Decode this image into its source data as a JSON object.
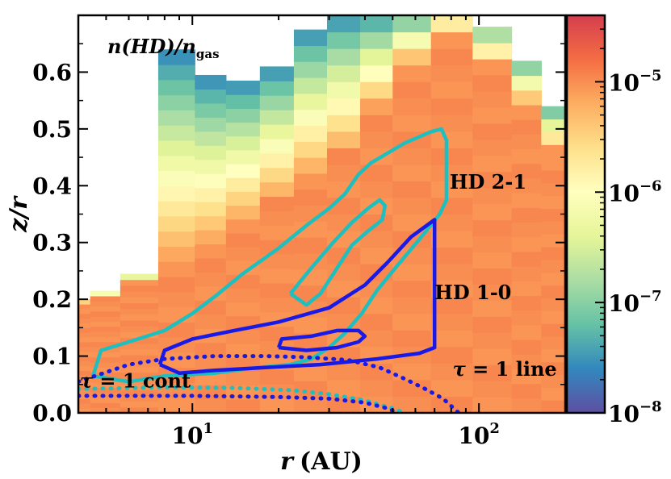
{
  "chart_data": {
    "type": "heatmap",
    "annotation_title_html": "n(HD)/n",
    "annotation_title_sub": "gas",
    "xlabel_var": "r",
    "xlabel_unit": "(AU)",
    "ylabel": "z/r",
    "xscale": "log",
    "xlim": [
      4,
      200
    ],
    "ylim": [
      0,
      0.7
    ],
    "x_tick_labels": [
      {
        "value": 10,
        "base": "10",
        "exp": "1"
      },
      {
        "value": 100,
        "base": "10",
        "exp": "2"
      }
    ],
    "y_ticks": [
      {
        "value": 0.0,
        "label": "0.0"
      },
      {
        "value": 0.1,
        "label": "0.1"
      },
      {
        "value": 0.2,
        "label": "0.2"
      },
      {
        "value": 0.3,
        "label": "0.3"
      },
      {
        "value": 0.4,
        "label": "0.4"
      },
      {
        "value": 0.5,
        "label": "0.5"
      },
      {
        "value": 0.6,
        "label": "0.6"
      }
    ],
    "colorbar": {
      "scale": "log",
      "range": [
        1e-08,
        4e-05
      ],
      "colormap": [
        "#5e4fa2",
        "#3288bd",
        "#66c2a5",
        "#abdda4",
        "#e6f598",
        "#ffffbf",
        "#fee08b",
        "#fdae61",
        "#f46d43",
        "#d53e4f"
      ],
      "ticks": [
        {
          "value": 1e-08,
          "base": "10",
          "exp": "−8"
        },
        {
          "value": 1e-07,
          "base": "10",
          "exp": "−7"
        },
        {
          "value": 1e-06,
          "base": "10",
          "exp": "−6"
        },
        {
          "value": 1e-05,
          "base": "10",
          "exp": "−5"
        }
      ]
    },
    "heatmap_columns": [
      {
        "r0": 4.0,
        "r1": 4.4,
        "ztop": 0.2,
        "depletion_top": 0.19
      },
      {
        "r0": 4.4,
        "r1": 5.6,
        "ztop": 0.215,
        "depletion_top": 0.2
      },
      {
        "r0": 5.6,
        "r1": 7.6,
        "ztop": 0.245,
        "depletion_top": 0.225
      },
      {
        "r0": 7.6,
        "r1": 10.2,
        "ztop": 0.64,
        "depletion_top": 0.25
      },
      {
        "r0": 10.2,
        "r1": 13.1,
        "ztop": 0.595,
        "depletion_top": 0.28
      },
      {
        "r0": 13.1,
        "r1": 17.2,
        "ztop": 0.585,
        "depletion_top": 0.32
      },
      {
        "r0": 17.2,
        "r1": 22.6,
        "ztop": 0.61,
        "depletion_top": 0.36
      },
      {
        "r0": 22.6,
        "r1": 29.5,
        "ztop": 0.675,
        "depletion_top": 0.4
      },
      {
        "r0": 29.5,
        "r1": 38.5,
        "ztop": 0.7,
        "depletion_top": 0.44
      },
      {
        "r0": 38.5,
        "r1": 50.0,
        "ztop": 0.7,
        "depletion_top": 0.52
      },
      {
        "r0": 50.0,
        "r1": 68.0,
        "ztop": 0.7,
        "depletion_top": 0.6
      },
      {
        "r0": 68.0,
        "r1": 95.0,
        "ztop": 0.7,
        "depletion_top": 0.66
      },
      {
        "r0": 95.0,
        "r1": 130.0,
        "ztop": 0.68,
        "depletion_top": 0.6
      },
      {
        "r0": 130.0,
        "r1": 165.0,
        "ztop": 0.62,
        "depletion_top": 0.53
      },
      {
        "r0": 165.0,
        "r1": 200.0,
        "ztop": 0.54,
        "depletion_top": 0.45
      }
    ],
    "series": [
      {
        "name": "HD 2-1",
        "color": "#1fbfbf",
        "style": "solid",
        "points": [
          [
            4.5,
            0.065
          ],
          [
            4.8,
            0.11
          ],
          [
            6,
            0.125
          ],
          [
            8,
            0.145
          ],
          [
            10,
            0.175
          ],
          [
            12,
            0.205
          ],
          [
            15,
            0.245
          ],
          [
            20,
            0.29
          ],
          [
            25,
            0.33
          ],
          [
            30,
            0.36
          ],
          [
            34,
            0.385
          ],
          [
            38,
            0.42
          ],
          [
            42,
            0.44
          ],
          [
            55,
            0.475
          ],
          [
            68,
            0.495
          ],
          [
            74,
            0.5
          ],
          [
            77,
            0.48
          ],
          [
            77,
            0.375
          ],
          [
            73,
            0.35
          ],
          [
            63,
            0.31
          ],
          [
            52,
            0.26
          ],
          [
            44,
            0.215
          ],
          [
            39,
            0.175
          ],
          [
            34,
            0.14
          ],
          [
            30,
            0.115
          ],
          [
            26,
            0.095
          ],
          [
            22,
            0.085
          ],
          [
            17,
            0.08
          ],
          [
            12,
            0.07
          ],
          [
            8,
            0.065
          ],
          [
            6,
            0.055
          ],
          [
            4.5,
            0.065
          ]
        ]
      },
      {
        "name": "HD 2-1 inner",
        "color": "#1fbfbf",
        "style": "solid",
        "points": [
          [
            22,
            0.21
          ],
          [
            26,
            0.255
          ],
          [
            31,
            0.3
          ],
          [
            36,
            0.335
          ],
          [
            41,
            0.36
          ],
          [
            45,
            0.375
          ],
          [
            47,
            0.365
          ],
          [
            46,
            0.34
          ],
          [
            41,
            0.32
          ],
          [
            36,
            0.295
          ],
          [
            32,
            0.255
          ],
          [
            28,
            0.21
          ],
          [
            25,
            0.19
          ],
          [
            22,
            0.21
          ]
        ]
      },
      {
        "name": "HD 1-0",
        "color": "#1a1ae6",
        "style": "solid",
        "points": [
          [
            7.7,
            0.085
          ],
          [
            8,
            0.11
          ],
          [
            10,
            0.13
          ],
          [
            14,
            0.145
          ],
          [
            20,
            0.16
          ],
          [
            30,
            0.185
          ],
          [
            40,
            0.225
          ],
          [
            48,
            0.265
          ],
          [
            58,
            0.31
          ],
          [
            70,
            0.34
          ],
          [
            70,
            0.115
          ],
          [
            62,
            0.105
          ],
          [
            44,
            0.095
          ],
          [
            28,
            0.085
          ],
          [
            18,
            0.08
          ],
          [
            12,
            0.075
          ],
          [
            9,
            0.07
          ],
          [
            7.7,
            0.085
          ]
        ]
      },
      {
        "name": "HD 1-0 inner",
        "color": "#1a1ae6",
        "style": "solid",
        "points": [
          [
            20,
            0.115
          ],
          [
            20.5,
            0.13
          ],
          [
            26,
            0.135
          ],
          [
            32,
            0.145
          ],
          [
            38,
            0.145
          ],
          [
            40,
            0.135
          ],
          [
            38,
            0.125
          ],
          [
            32,
            0.115
          ],
          [
            25,
            0.11
          ],
          [
            20,
            0.115
          ]
        ]
      },
      {
        "name": "τ = 1 cont",
        "color": "#1a1ae6",
        "style": "dotted",
        "points": [
          [
            4,
            0.055
          ],
          [
            6,
            0.085
          ],
          [
            8,
            0.095
          ],
          [
            12,
            0.1
          ],
          [
            18,
            0.1
          ],
          [
            25,
            0.098
          ],
          [
            35,
            0.093
          ],
          [
            45,
            0.08
          ],
          [
            55,
            0.06
          ],
          [
            65,
            0.042
          ],
          [
            75,
            0.025
          ],
          [
            85,
            0.0
          ]
        ]
      },
      {
        "name": "τ = 1 line",
        "color": "#1fbfbf",
        "style": "dotted",
        "points": [
          [
            4,
            0.042
          ],
          [
            8,
            0.045
          ],
          [
            14,
            0.044
          ],
          [
            22,
            0.04
          ],
          [
            30,
            0.033
          ],
          [
            40,
            0.022
          ],
          [
            50,
            0.008
          ],
          [
            55,
            0.0
          ]
        ]
      },
      {
        "name": "inner dotted",
        "color": "#1a1ae6",
        "style": "dotted",
        "points": [
          [
            4,
            0.03
          ],
          [
            10,
            0.03
          ],
          [
            20,
            0.028
          ],
          [
            30,
            0.025
          ],
          [
            40,
            0.018
          ],
          [
            48,
            0.008
          ],
          [
            52,
            0.0
          ]
        ]
      }
    ],
    "annotations": [
      {
        "text": "HD 2-1",
        "color": "#1fbfbf",
        "r": 79,
        "z": 0.395
      },
      {
        "text": "HD 1-0",
        "color": "#1a1ae6",
        "r": 70,
        "z": 0.2
      },
      {
        "text_var": "τ",
        "text_rest": " = 1 cont",
        "color": "#000000",
        "r": 4.05,
        "z": 0.045
      },
      {
        "text_var": "τ",
        "text_rest": " = 1 line",
        "color": "#000000",
        "r": 81,
        "z": 0.065
      }
    ]
  }
}
